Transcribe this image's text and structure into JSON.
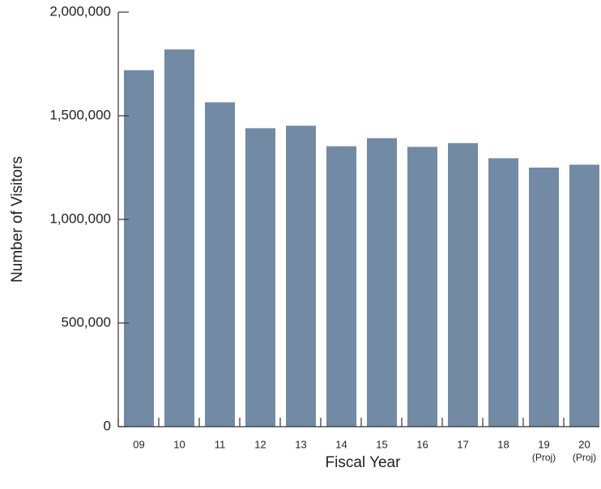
{
  "chart_data": {
    "type": "bar",
    "title": "",
    "xlabel": "Fiscal Year",
    "ylabel": "Number of Visitors",
    "ylim": [
      0,
      2000000
    ],
    "yticks": [
      {
        "value": 0,
        "label": "0"
      },
      {
        "value": 500000,
        "label": "500,000"
      },
      {
        "value": 1000000,
        "label": "1,000,000"
      },
      {
        "value": 1500000,
        "label": "1,500,000"
      },
      {
        "value": 2000000,
        "label": "2,000,000"
      }
    ],
    "categories": [
      {
        "label": "09",
        "sublabel": ""
      },
      {
        "label": "10",
        "sublabel": ""
      },
      {
        "label": "11",
        "sublabel": ""
      },
      {
        "label": "12",
        "sublabel": ""
      },
      {
        "label": "13",
        "sublabel": ""
      },
      {
        "label": "14",
        "sublabel": ""
      },
      {
        "label": "15",
        "sublabel": ""
      },
      {
        "label": "16",
        "sublabel": ""
      },
      {
        "label": "17",
        "sublabel": ""
      },
      {
        "label": "18",
        "sublabel": ""
      },
      {
        "label": "19",
        "sublabel": "(Proj)"
      },
      {
        "label": "20",
        "sublabel": "(Proj)"
      }
    ],
    "values": [
      1720000,
      1820000,
      1565000,
      1440000,
      1452000,
      1353000,
      1392000,
      1350000,
      1368000,
      1295000,
      1250000,
      1264000
    ],
    "bar_color": "#738aa5",
    "axis_color": "#333333",
    "grid": false,
    "legend": "none"
  }
}
